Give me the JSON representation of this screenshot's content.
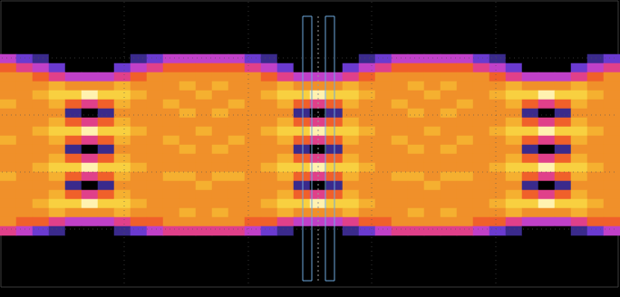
{
  "chart_data": {
    "type": "heatmap",
    "tick_labels": false,
    "grid": true,
    "color_range": [
      0,
      9
    ],
    "cells": [
      [
        3,
        2,
        1,
        0,
        0,
        0,
        0,
        0,
        1,
        2,
        3,
        3,
        3,
        3,
        3,
        2,
        1,
        0,
        0,
        0,
        0,
        0,
        1,
        2,
        3,
        3,
        3,
        3,
        3,
        2,
        1,
        0,
        0,
        0,
        0,
        0,
        1,
        2
      ],
      [
        5,
        4,
        3,
        2,
        0,
        0,
        0,
        2,
        3,
        4,
        5,
        5,
        5,
        5,
        5,
        4,
        3,
        2,
        0,
        0,
        0,
        2,
        3,
        4,
        5,
        5,
        5,
        5,
        5,
        4,
        3,
        2,
        0,
        0,
        0,
        2,
        3,
        4
      ],
      [
        6,
        6,
        5,
        4,
        3,
        3,
        3,
        4,
        5,
        6,
        6,
        6,
        6,
        6,
        6,
        6,
        5,
        4,
        3,
        3,
        3,
        4,
        5,
        6,
        6,
        6,
        6,
        6,
        6,
        6,
        5,
        4,
        3,
        3,
        3,
        4,
        5,
        6
      ],
      [
        6,
        6,
        6,
        7,
        6,
        6,
        6,
        7,
        6,
        6,
        6,
        7,
        6,
        7,
        6,
        6,
        6,
        7,
        6,
        6,
        6,
        7,
        6,
        6,
        6,
        7,
        6,
        7,
        6,
        6,
        6,
        7,
        6,
        6,
        6,
        7,
        6,
        6
      ],
      [
        6,
        6,
        7,
        8,
        8,
        9,
        8,
        8,
        7,
        6,
        6,
        6,
        7,
        6,
        6,
        6,
        7,
        8,
        8,
        9,
        8,
        8,
        7,
        6,
        6,
        6,
        7,
        6,
        6,
        6,
        7,
        8,
        8,
        9,
        8,
        8,
        7,
        6
      ],
      [
        7,
        6,
        6,
        7,
        5,
        4,
        5,
        7,
        6,
        6,
        7,
        6,
        6,
        6,
        7,
        6,
        6,
        7,
        5,
        4,
        5,
        7,
        6,
        6,
        7,
        6,
        6,
        6,
        7,
        6,
        6,
        7,
        5,
        4,
        5,
        7,
        6,
        6
      ],
      [
        6,
        6,
        6,
        6,
        1,
        0,
        1,
        6,
        6,
        6,
        6,
        7,
        6,
        7,
        6,
        6,
        6,
        6,
        1,
        0,
        1,
        6,
        6,
        6,
        6,
        7,
        6,
        7,
        6,
        6,
        6,
        6,
        1,
        0,
        1,
        6,
        6,
        6
      ],
      [
        6,
        6,
        6,
        7,
        5,
        4,
        5,
        7,
        6,
        6,
        6,
        6,
        6,
        6,
        6,
        6,
        6,
        7,
        5,
        4,
        5,
        7,
        6,
        6,
        6,
        6,
        6,
        6,
        6,
        6,
        6,
        7,
        5,
        4,
        5,
        7,
        6,
        6
      ],
      [
        6,
        6,
        7,
        8,
        8,
        9,
        8,
        8,
        7,
        6,
        6,
        6,
        7,
        6,
        6,
        6,
        7,
        8,
        8,
        9,
        8,
        8,
        7,
        6,
        6,
        6,
        7,
        6,
        6,
        6,
        7,
        8,
        8,
        9,
        8,
        8,
        7,
        6
      ],
      [
        7,
        6,
        6,
        7,
        5,
        4,
        5,
        7,
        6,
        6,
        7,
        6,
        6,
        6,
        7,
        6,
        6,
        7,
        5,
        4,
        5,
        7,
        6,
        6,
        7,
        6,
        6,
        6,
        7,
        6,
        6,
        7,
        5,
        4,
        5,
        7,
        6,
        6
      ],
      [
        6,
        6,
        6,
        6,
        1,
        0,
        1,
        6,
        6,
        6,
        6,
        7,
        6,
        7,
        6,
        6,
        6,
        6,
        1,
        0,
        1,
        6,
        6,
        6,
        6,
        7,
        6,
        7,
        6,
        6,
        6,
        6,
        1,
        0,
        1,
        6,
        6,
        6
      ],
      [
        6,
        6,
        6,
        7,
        5,
        4,
        5,
        7,
        6,
        6,
        6,
        6,
        6,
        6,
        6,
        6,
        6,
        7,
        5,
        4,
        5,
        7,
        6,
        6,
        6,
        6,
        6,
        6,
        6,
        6,
        6,
        7,
        5,
        4,
        5,
        7,
        6,
        6
      ],
      [
        6,
        6,
        7,
        8,
        8,
        9,
        8,
        8,
        7,
        6,
        6,
        6,
        6,
        6,
        6,
        6,
        7,
        8,
        8,
        9,
        8,
        8,
        7,
        6,
        6,
        6,
        6,
        6,
        6,
        6,
        7,
        8,
        8,
        9,
        8,
        8,
        7,
        6
      ],
      [
        7,
        6,
        6,
        7,
        5,
        4,
        5,
        7,
        6,
        6,
        7,
        7,
        6,
        7,
        7,
        6,
        6,
        7,
        5,
        4,
        5,
        7,
        6,
        6,
        7,
        7,
        6,
        7,
        7,
        6,
        6,
        7,
        5,
        4,
        5,
        7,
        6,
        6
      ],
      [
        6,
        6,
        6,
        6,
        1,
        0,
        1,
        6,
        6,
        6,
        6,
        6,
        7,
        6,
        6,
        6,
        6,
        6,
        1,
        0,
        1,
        6,
        6,
        6,
        6,
        6,
        7,
        6,
        6,
        6,
        6,
        6,
        1,
        0,
        1,
        6,
        6,
        6
      ],
      [
        6,
        6,
        6,
        7,
        5,
        4,
        5,
        7,
        6,
        6,
        6,
        6,
        6,
        6,
        6,
        6,
        6,
        7,
        5,
        4,
        5,
        7,
        6,
        6,
        6,
        6,
        6,
        6,
        6,
        6,
        6,
        7,
        5,
        4,
        5,
        7,
        6,
        6
      ],
      [
        6,
        6,
        7,
        8,
        8,
        9,
        8,
        8,
        7,
        6,
        6,
        6,
        6,
        6,
        6,
        6,
        7,
        8,
        8,
        9,
        8,
        8,
        7,
        6,
        6,
        6,
        6,
        6,
        6,
        6,
        7,
        8,
        8,
        9,
        8,
        8,
        7,
        6
      ],
      [
        6,
        6,
        6,
        7,
        6,
        6,
        6,
        7,
        6,
        6,
        6,
        7,
        6,
        7,
        6,
        6,
        6,
        7,
        6,
        6,
        6,
        7,
        6,
        6,
        6,
        7,
        6,
        7,
        6,
        6,
        6,
        7,
        6,
        6,
        6,
        7,
        6,
        6
      ],
      [
        6,
        5,
        5,
        4,
        3,
        3,
        3,
        4,
        5,
        5,
        6,
        6,
        6,
        6,
        6,
        5,
        5,
        4,
        3,
        3,
        3,
        4,
        5,
        5,
        6,
        6,
        6,
        6,
        6,
        5,
        5,
        4,
        3,
        3,
        3,
        4,
        5,
        5
      ],
      [
        4,
        3,
        2,
        1,
        0,
        0,
        0,
        1,
        2,
        3,
        4,
        4,
        4,
        4,
        4,
        3,
        2,
        1,
        0,
        0,
        0,
        1,
        2,
        3,
        4,
        4,
        4,
        4,
        4,
        3,
        2,
        1,
        0,
        0,
        0,
        1,
        2,
        3
      ]
    ]
  }
}
